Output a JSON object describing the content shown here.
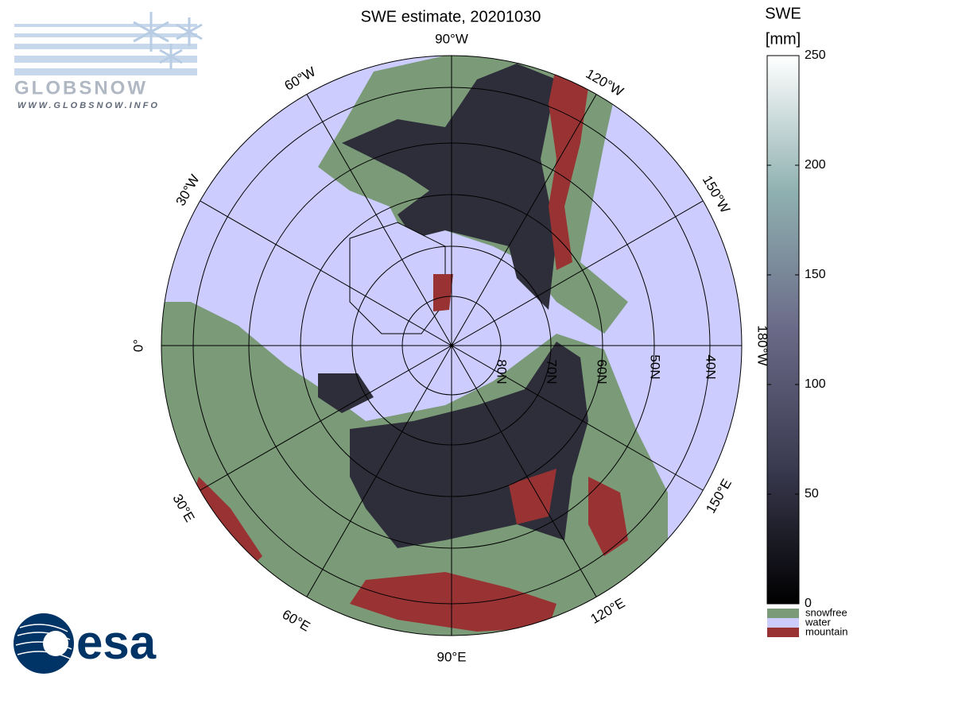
{
  "title": "SWE estimate, 20201030",
  "logo": {
    "name": "GLOBSNOW",
    "url": "WWW.GLOBSNOW.INFO"
  },
  "agency": "esa",
  "colorbar": {
    "label": [
      "SWE",
      "[mm]"
    ],
    "lim": [
      0,
      250
    ],
    "ticks": [
      0,
      50,
      100,
      150,
      200,
      250
    ]
  },
  "legend": [
    {
      "name": "snowfree",
      "color": "#7a9a78"
    },
    {
      "name": "water",
      "color": "#ccccff"
    },
    {
      "name": "mountain",
      "color": "#993333"
    }
  ],
  "meridian_labels": [
    "90°W",
    "120°W",
    "150°W",
    "180°W",
    "150°E",
    "120°E",
    "90°E",
    "60°E",
    "30°E",
    "0°",
    "30°W",
    "60°W"
  ],
  "parallel_labels": [
    "80N",
    "70N",
    "60N",
    "50N",
    "40N"
  ]
}
